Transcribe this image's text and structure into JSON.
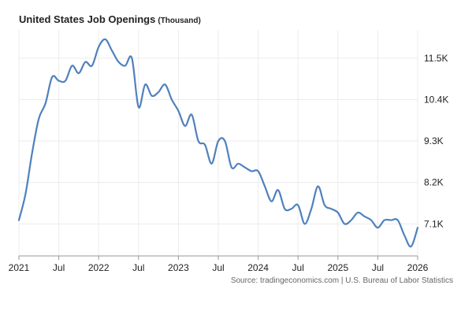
{
  "header": {
    "title": "United States Job Openings",
    "unit": "(Thousand)"
  },
  "footer": {
    "source": "Source: tradingeconomics.com | U.S. Bureau of Labor Statistics"
  },
  "colors": {
    "line": "#4f81bd",
    "grid": "#ececec",
    "axis": "#999999"
  },
  "chart_data": {
    "type": "line",
    "title": "United States Job Openings",
    "subtitle": "(Thousand)",
    "xlabel": "",
    "ylabel": "",
    "grid": true,
    "xlim": [
      "2021-01",
      "2026-01"
    ],
    "ylim": [
      6.25,
      12.25
    ],
    "x_ticks": [
      {
        "date": "2021-01",
        "label": "2021"
      },
      {
        "date": "2021-07",
        "label": "Jul"
      },
      {
        "date": "2022-01",
        "label": "2022"
      },
      {
        "date": "2022-07",
        "label": "Jul"
      },
      {
        "date": "2023-01",
        "label": "2023"
      },
      {
        "date": "2023-07",
        "label": "Jul"
      },
      {
        "date": "2024-01",
        "label": "2024"
      },
      {
        "date": "2024-07",
        "label": "Jul"
      },
      {
        "date": "2025-01",
        "label": "2025"
      },
      {
        "date": "2025-07",
        "label": "Jul"
      },
      {
        "date": "2026-01",
        "label": "2026"
      }
    ],
    "y_ticks": [
      {
        "value": 7.1,
        "label": "7.1K"
      },
      {
        "value": 8.2,
        "label": "8.2K"
      },
      {
        "value": 9.3,
        "label": "9.3K"
      },
      {
        "value": 10.4,
        "label": "10.4K"
      },
      {
        "value": 11.5,
        "label": "11.5K"
      }
    ],
    "series": [
      {
        "name": "",
        "x": [
          "2021-01",
          "2021-02",
          "2021-03",
          "2021-04",
          "2021-05",
          "2021-06",
          "2021-07",
          "2021-08",
          "2021-09",
          "2021-10",
          "2021-11",
          "2021-12",
          "2022-01",
          "2022-02",
          "2022-03",
          "2022-04",
          "2022-05",
          "2022-06",
          "2022-07",
          "2022-08",
          "2022-09",
          "2022-10",
          "2022-11",
          "2022-12",
          "2023-01",
          "2023-02",
          "2023-03",
          "2023-04",
          "2023-05",
          "2023-06",
          "2023-07",
          "2023-08",
          "2023-09",
          "2023-10",
          "2023-11",
          "2023-12",
          "2024-01",
          "2024-02",
          "2024-03",
          "2024-04",
          "2024-05",
          "2024-06",
          "2024-07",
          "2024-08",
          "2024-09",
          "2024-10",
          "2024-11",
          "2024-12",
          "2025-01",
          "2025-02",
          "2025-03",
          "2025-04",
          "2025-05",
          "2025-06",
          "2025-07",
          "2025-08",
          "2025-09",
          "2025-10",
          "2025-11",
          "2025-12",
          "2026-01"
        ],
        "values": [
          7.2,
          7.9,
          9.0,
          9.9,
          10.3,
          11.0,
          10.9,
          10.9,
          11.3,
          11.1,
          11.4,
          11.3,
          11.8,
          12.0,
          11.7,
          11.4,
          11.3,
          11.5,
          10.2,
          10.8,
          10.5,
          10.6,
          10.8,
          10.4,
          10.1,
          9.7,
          10.0,
          9.3,
          9.2,
          8.7,
          9.3,
          9.3,
          8.6,
          8.7,
          8.6,
          8.5,
          8.5,
          8.1,
          7.7,
          8.0,
          7.5,
          7.5,
          7.6,
          7.1,
          7.5,
          8.1,
          7.6,
          7.5,
          7.4,
          7.1,
          7.2,
          7.4,
          7.3,
          7.2,
          7.0,
          7.2,
          7.2,
          7.2,
          6.8,
          6.5,
          7.0
        ]
      }
    ]
  }
}
